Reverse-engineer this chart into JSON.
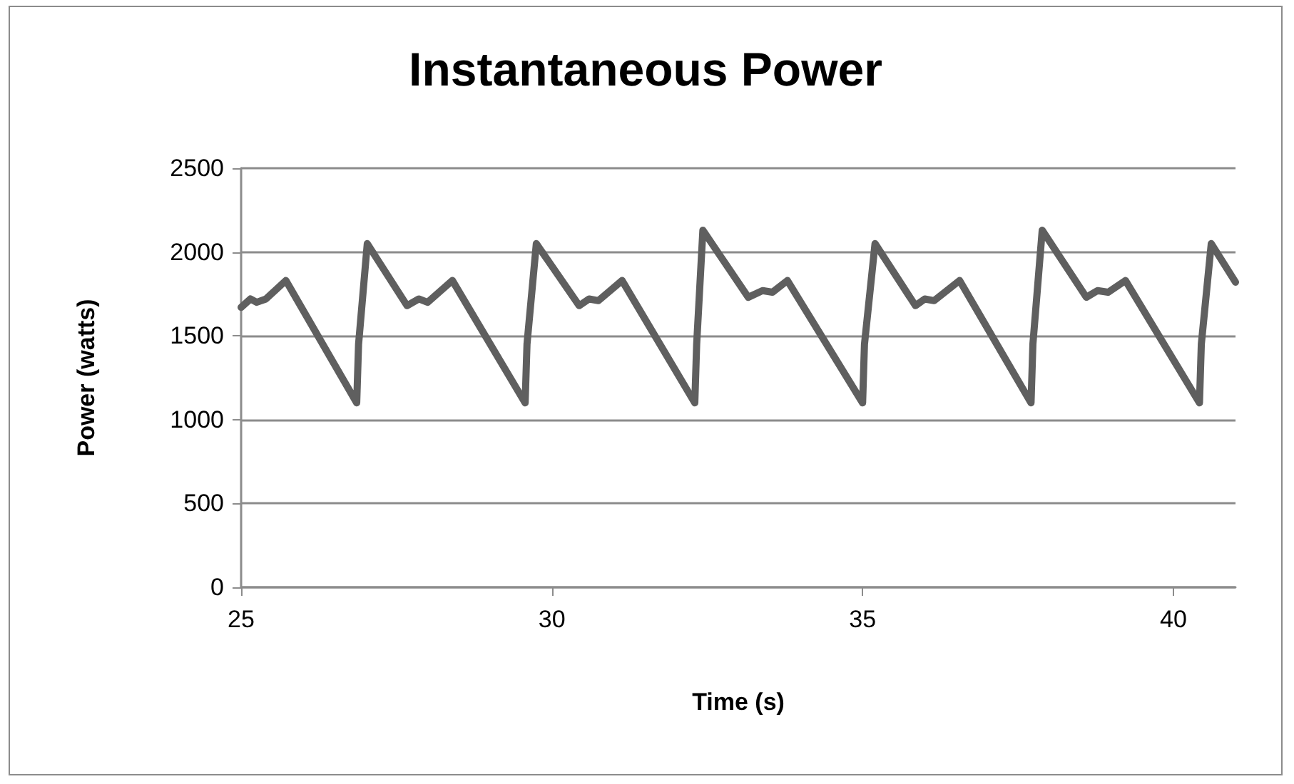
{
  "chart_data": {
    "type": "line",
    "title": "Instantaneous Power",
    "xlabel": "Time (s)",
    "ylabel": "Power (watts)",
    "x": [
      25,
      25.15,
      25.25,
      25.4,
      25.72,
      26.86,
      26.89,
      27.03,
      27.67,
      27.86,
      28.0,
      28.4,
      29.57,
      29.6,
      29.75,
      30.44,
      30.6,
      30.75,
      31.13,
      32.3,
      32.33,
      32.43,
      33.16,
      33.39,
      33.55,
      33.79,
      35.0,
      35.03,
      35.2,
      35.85,
      36.0,
      36.15,
      36.56,
      37.71,
      37.74,
      37.89,
      38.6,
      38.78,
      38.95,
      39.23,
      40.42,
      40.45,
      40.61,
      41.0
    ],
    "series": [
      {
        "color": "#5f5f5f",
        "values": [
          1670,
          1720,
          1700,
          1720,
          1830,
          1100,
          1450,
          2050,
          1680,
          1720,
          1700,
          1830,
          1100,
          1450,
          2050,
          1680,
          1720,
          1710,
          1830,
          1100,
          1450,
          2130,
          1730,
          1770,
          1760,
          1830,
          1100,
          1450,
          2050,
          1680,
          1720,
          1710,
          1830,
          1100,
          1450,
          2130,
          1730,
          1770,
          1760,
          1830,
          1100,
          1450,
          2050,
          1820
        ]
      }
    ],
    "xlim": [
      25,
      41
    ],
    "xticks": [
      25,
      30,
      35,
      40
    ],
    "ylim": [
      0,
      2500
    ],
    "yticks": [
      0,
      500,
      1000,
      1500,
      2000,
      2500
    ],
    "grid": "y",
    "marker": "none",
    "line_style": "solid"
  }
}
